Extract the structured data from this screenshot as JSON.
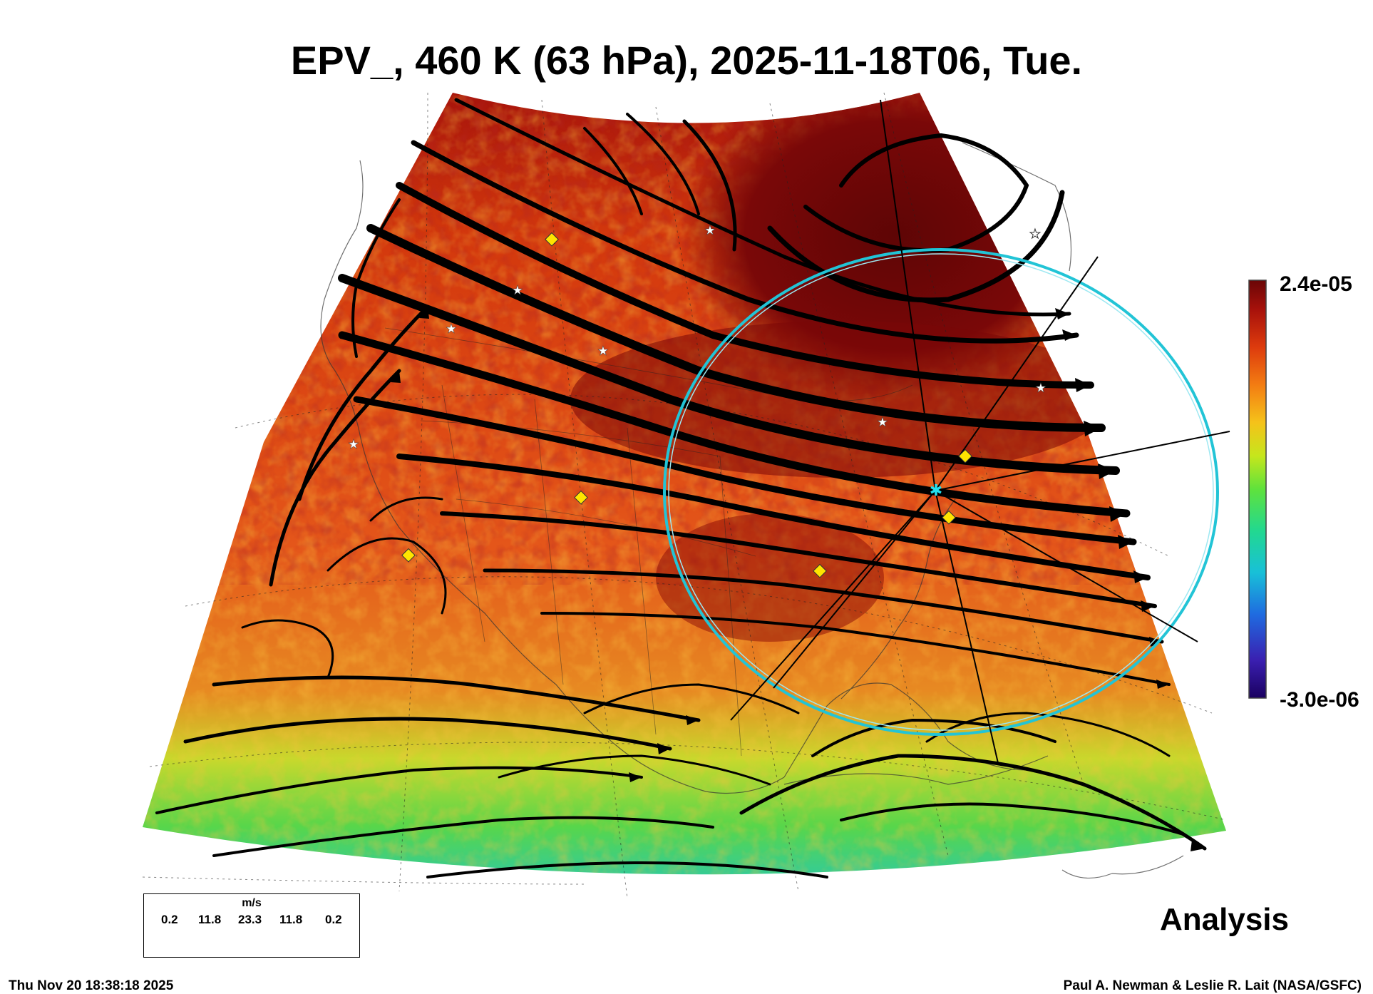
{
  "title": "EPV_, 460 K (63 hPa), 2025-11-18T06, Tue.",
  "colorbar": {
    "max_label": "2.4e-05",
    "min_label": "-3.0e-06",
    "colors": [
      "#1a0060",
      "#3a1fb0",
      "#1f6be0",
      "#18c0d8",
      "#22d890",
      "#5fe23c",
      "#c6e61c",
      "#f5c21a",
      "#f37c12",
      "#dd3b0d",
      "#a7110b",
      "#6a0606"
    ]
  },
  "legend": {
    "unit": "m/s",
    "labels": [
      "0.2",
      "11.8",
      "23.3",
      "11.8",
      "0.2"
    ]
  },
  "analysis_label": "Analysis",
  "timestamp": "Thu Nov 20 18:38:18 2025",
  "credit": "Paul A. Newman & Leslie R. Lait (NASA/GSFC)",
  "map": {
    "field_colors": {
      "tropical": "#5ad84a",
      "midlat": "#e05a12",
      "polar": "#8a0a06",
      "vortex": "#6a0606"
    },
    "ring_color": "#22c4d6",
    "station_markers": [
      "white-star",
      "yellow-diamond",
      "cyan-star"
    ]
  }
}
